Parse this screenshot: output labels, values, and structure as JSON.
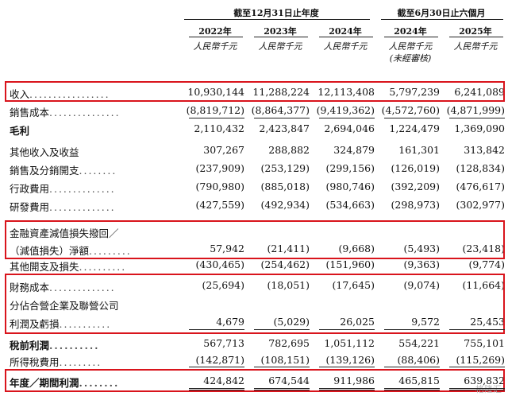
{
  "header": {
    "group_full_year": "截至12月31日止年度",
    "group_half_year": "截至6月30日止六個月",
    "years": [
      "2022年",
      "2023年",
      "2024年",
      "2024年",
      "2025年"
    ],
    "units": [
      "人民幣千元",
      "人民幣千元",
      "人民幣千元",
      "人民幣千元",
      "人民幣千元"
    ],
    "unaudited": "(未經審核)"
  },
  "rows": [
    {
      "label": "收入",
      "dots": ".................",
      "values": [
        "10,930,144",
        "11,288,224",
        "12,113,408",
        "5,797,239",
        "6,241,089"
      ]
    },
    {
      "label": "銷售成本",
      "dots": "...............",
      "values": [
        "(8,819,712)",
        "(8,864,377)",
        "(9,419,362)",
        "(4,572,760)",
        "(4,871,999)"
      ]
    },
    {
      "label": "毛利",
      "dots": "",
      "values": [
        "2,110,432",
        "2,423,847",
        "2,694,046",
        "1,224,479",
        "1,369,090"
      ]
    },
    {
      "label": "其他收入及收益",
      "dots": "",
      "values": [
        "307,267",
        "288,882",
        "324,879",
        "161,301",
        "313,842"
      ]
    },
    {
      "label": "銷售及分銷開支",
      "dots": "........",
      "values": [
        "(237,909)",
        "(253,129)",
        "(299,156)",
        "(126,019)",
        "(128,834)"
      ]
    },
    {
      "label": "行政費用",
      "dots": "..............",
      "values": [
        "(790,980)",
        "(885,018)",
        "(980,746)",
        "(392,209)",
        "(476,617)"
      ]
    },
    {
      "label": "研發費用",
      "dots": "..............",
      "values": [
        "(427,559)",
        "(492,934)",
        "(534,663)",
        "(298,973)",
        "(302,977)"
      ]
    },
    {
      "label": "金融資產減值損失撥回／",
      "dots": "",
      "values": [
        "",
        "",
        "",
        "",
        ""
      ]
    },
    {
      "label": "（減值損失）淨額",
      "dots": ".........",
      "values": [
        "57,942",
        "(21,411)",
        "(9,668)",
        "(5,493)",
        "(23,418)"
      ]
    },
    {
      "label": "其他開支及損失",
      "dots": "..........",
      "values": [
        "(430,465)",
        "(254,462)",
        "(151,960)",
        "(9,363)",
        "(9,774)"
      ]
    },
    {
      "label": "財務成本",
      "dots": "..............",
      "values": [
        "(25,694)",
        "(18,051)",
        "(17,645)",
        "(9,074)",
        "(11,664)"
      ]
    },
    {
      "label": "分佔合營企業及聯營公司",
      "dots": "",
      "values": [
        "",
        "",
        "",
        "",
        ""
      ]
    },
    {
      "label": "利潤及虧損",
      "dots": "...........",
      "values": [
        "4,679",
        "(5,029)",
        "26,025",
        "9,572",
        "25,453"
      ]
    },
    {
      "label": "稅前利潤",
      "dots": "..........",
      "values": [
        "567,713",
        "782,695",
        "1,051,112",
        "554,221",
        "755,101"
      ]
    },
    {
      "label": "所得稅費用",
      "dots": ".........",
      "values": [
        "(142,871)",
        "(108,151)",
        "(139,126)",
        "(88,406)",
        "(115,269)"
      ]
    },
    {
      "label": "年度／期間利潤",
      "dots": "........",
      "values": [
        "424,842",
        "674,544",
        "911,986",
        "465,815",
        "639,832"
      ]
    }
  ],
  "watermark": "格隆汇"
}
